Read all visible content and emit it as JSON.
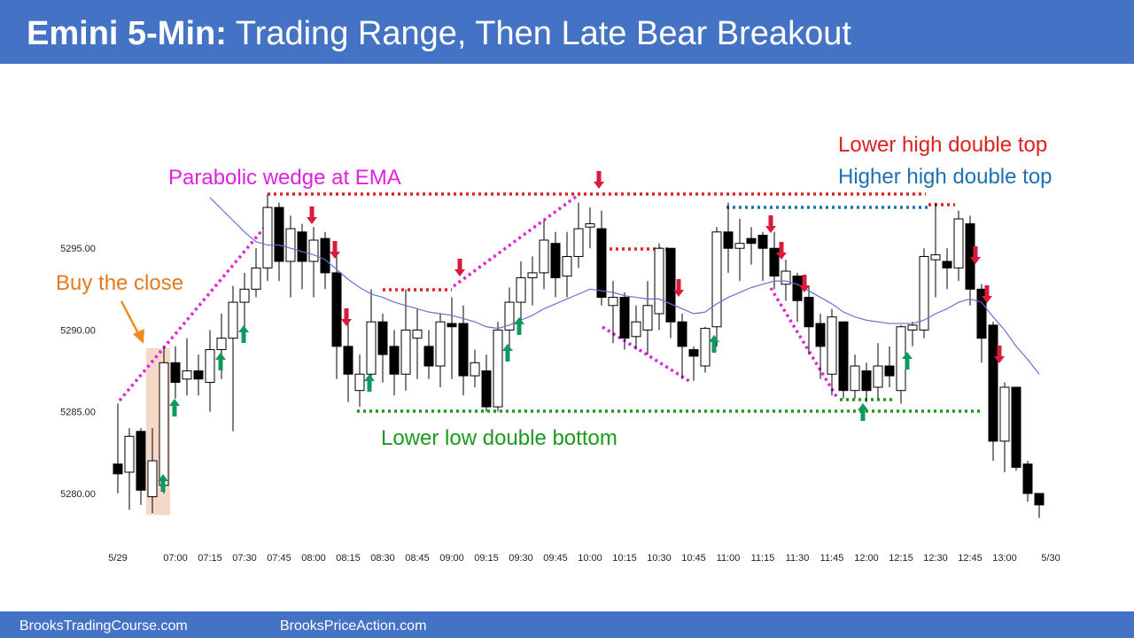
{
  "chart_data": {
    "type": "candlestick",
    "title": {
      "lead": "Emini 5-Min:",
      "text": "Trading Range, Then Late Bear Breakout"
    },
    "footer": [
      "BrooksTradingCourse.com",
      "BrooksPriceAction.com"
    ],
    "annotations": {
      "wedge": "Parabolic wedge at EMA",
      "buy": "Buy the close",
      "lower_high": "Lower high double top",
      "higher_high": "Higher high double top",
      "lower_low": "Lower low double bottom"
    },
    "categories": [
      "5/29",
      null,
      null,
      null,
      null,
      "07:00",
      null,
      null,
      "07:15",
      null,
      null,
      "07:30",
      null,
      null,
      "07:45",
      null,
      null,
      "08:00",
      null,
      null,
      "08:15",
      null,
      null,
      "08:30",
      null,
      null,
      "08:45",
      null,
      null,
      "09:00",
      null,
      null,
      "09:15",
      null,
      null,
      "09:30",
      null,
      null,
      "09:45",
      null,
      null,
      "10:00",
      null,
      null,
      "10:15",
      null,
      null,
      "10:30",
      null,
      null,
      "10:45",
      null,
      null,
      "11:00",
      null,
      null,
      "11:15",
      null,
      null,
      "11:30",
      null,
      null,
      "11:45",
      null,
      null,
      "12:00",
      null,
      null,
      "12:15",
      null,
      null,
      "12:30",
      null,
      null,
      "12:45",
      null,
      null,
      "13:00",
      null,
      null,
      null,
      "5/30"
    ],
    "open": [
      5281.8,
      5281.3,
      5283.8,
      5279.8,
      5280.5,
      5288,
      5287,
      5287.5,
      5286.8,
      5288.8,
      5289.5,
      5291.7,
      5292.5,
      5293.8,
      5297.5,
      5294.2,
      5296,
      5294.2,
      5295.6,
      5293.5,
      5289,
      5286.3,
      5287.3,
      5290.5,
      5289,
      5287.3,
      5289.5,
      5289,
      5287.8,
      5290.4,
      5290.4,
      5287.2,
      5287.5,
      5285.3,
      5290,
      5291.7,
      5293.2,
      5293.5,
      5295.3,
      5293.3,
      5294.5,
      5296.3,
      5296.2,
      5291.5,
      5292,
      5289.6,
      5290,
      5291,
      5295,
      5290.5,
      5288.8,
      5287.8,
      5290.2,
      5296,
      5295,
      5295.6,
      5295.8,
      5295,
      5292.8,
      5293.3,
      5292,
      5290.4,
      5287.3,
      5290.5,
      5286.3,
      5287.5,
      5286.5,
      5287.8,
      5286.3,
      5290,
      5290,
      5294.3,
      5294.2,
      5293.8,
      5296.5,
      5292.5,
      5290.3,
      5283.2,
      5286.5,
      5281.8,
      5280,
      null
    ],
    "high": [
      5285.5,
      5284,
      5284,
      5284,
      5289,
      5289,
      5289.5,
      5288.5,
      5290,
      5291,
      5292.7,
      5293.5,
      5295,
      5298.3,
      5297.8,
      5297,
      5296.5,
      5296.3,
      5296,
      5295,
      5290.5,
      5288.5,
      5292.5,
      5291,
      5290,
      5292.5,
      5291.3,
      5290,
      5291,
      5292,
      5291.5,
      5288.8,
      5288.5,
      5290.5,
      5292.6,
      5294.2,
      5294.5,
      5296.7,
      5296,
      5296,
      5297.8,
      5297.5,
      5297.3,
      5293,
      5292.3,
      5291.5,
      5293,
      5295.3,
      5295,
      5291,
      5289,
      5290.2,
      5296.3,
      5297.8,
      5296.8,
      5296.3,
      5296,
      5296,
      5294.3,
      5293.5,
      5292.7,
      5291,
      5291.3,
      5290.5,
      5288.5,
      5288,
      5289.2,
      5289,
      5290.3,
      5290.5,
      5295,
      5297.8,
      5295,
      5297.3,
      5297,
      5292.8,
      5290.5,
      5286.8,
      5286.5,
      5282,
      5280,
      null
    ],
    "low": [
      5280,
      5279,
      5279.3,
      5278.8,
      5280,
      5285.8,
      5286,
      5286,
      5285,
      5287,
      5283.8,
      5290,
      5292,
      5293,
      5293,
      5292,
      5292.5,
      5292,
      5292.5,
      5287,
      5285.6,
      5285.3,
      5286.5,
      5286.8,
      5286,
      5286.3,
      5287,
      5287,
      5286.5,
      5287,
      5286,
      5286.5,
      5285,
      5285,
      5289,
      5290.5,
      5291.5,
      5292.5,
      5292,
      5292,
      5293.8,
      5295,
      5291.5,
      5289.2,
      5288.8,
      5288.8,
      5288.5,
      5290,
      5289.5,
      5287,
      5286.9,
      5287.4,
      5289,
      5293.5,
      5293,
      5294,
      5293,
      5292.5,
      5291.8,
      5290.5,
      5288.5,
      5287,
      5286,
      5285.8,
      5285.8,
      5285.6,
      5285.8,
      5286.5,
      5285.5,
      5289,
      5289.5,
      5292,
      5292.5,
      5293,
      5291.5,
      5288,
      5282,
      5281.3,
      5281.4,
      5279.5,
      5278.5,
      null
    ],
    "close": [
      5281.2,
      5283.5,
      5280.2,
      5282,
      5288,
      5286.8,
      5287.5,
      5287,
      5288.8,
      5289.5,
      5291.7,
      5292.5,
      5293.8,
      5297.5,
      5294.2,
      5296.2,
      5294.2,
      5295.5,
      5293.5,
      5289,
      5287.3,
      5287.3,
      5290.5,
      5288.5,
      5287.3,
      5290,
      5290,
      5287.8,
      5290.5,
      5290.2,
      5287.2,
      5288,
      5285.3,
      5290,
      5291.7,
      5293.2,
      5293.5,
      5295.5,
      5293.2,
      5294.5,
      5296.2,
      5296.5,
      5292,
      5292,
      5289.5,
      5290.5,
      5291.5,
      5295,
      5290.5,
      5289,
      5288.4,
      5290.1,
      5296,
      5295,
      5295.3,
      5295.3,
      5295,
      5293.3,
      5293.6,
      5291.8,
      5290.2,
      5289,
      5290.8,
      5286.3,
      5287.8,
      5286.3,
      5287.8,
      5287.2,
      5290.2,
      5290.3,
      5294.5,
      5294.6,
      5293.8,
      5296.8,
      5292.5,
      5289.5,
      5283.2,
      5286.5,
      5281.6,
      5280,
      5279.3,
      null
    ],
    "ema": {
      "color": "#6b6fd6",
      "values": [
        null,
        null,
        null,
        null,
        null,
        null,
        null,
        null,
        5298.1,
        5297.4,
        5296.7,
        5296.0,
        5295.4,
        5295.2,
        5295.2,
        5295.0,
        5294.8,
        5294.6,
        5294.3,
        5293.7,
        5293.1,
        5292.6,
        5292.2,
        5292.0,
        5291.7,
        5291.5,
        5291.3,
        5291.1,
        5291.0,
        5290.9,
        5290.7,
        5290.5,
        5290.2,
        5290.1,
        5290.3,
        5290.6,
        5290.9,
        5291.3,
        5291.6,
        5291.9,
        5292.2,
        5292.5,
        5292.4,
        5292.3,
        5292.1,
        5292.0,
        5291.9,
        5291.9,
        5291.6,
        5291.3,
        5291.0,
        5291.1,
        5291.6,
        5292.0,
        5292.3,
        5292.6,
        5292.8,
        5293.0,
        5293.0,
        5292.8,
        5292.4,
        5292.0,
        5291.6,
        5291.1,
        5290.8,
        5290.6,
        5290.5,
        5290.4,
        5290.4,
        5290.4,
        5290.6,
        5291.0,
        5291.3,
        5291.7,
        5291.9,
        5291.7,
        5290.8,
        5290.0,
        5289.0,
        5288.2,
        5287.3,
        null
      ]
    },
    "ylim": [
      5277.5,
      5300
    ],
    "yticks": [
      {
        "value": 5280,
        "label": "5280.00"
      },
      {
        "value": 5285,
        "label": "5285.00"
      },
      {
        "value": 5290,
        "label": "5290.00"
      },
      {
        "value": 5295,
        "label": "5295.00"
      }
    ],
    "up_color": "#ffffff",
    "down_color": "#000000",
    "grid": false
  }
}
